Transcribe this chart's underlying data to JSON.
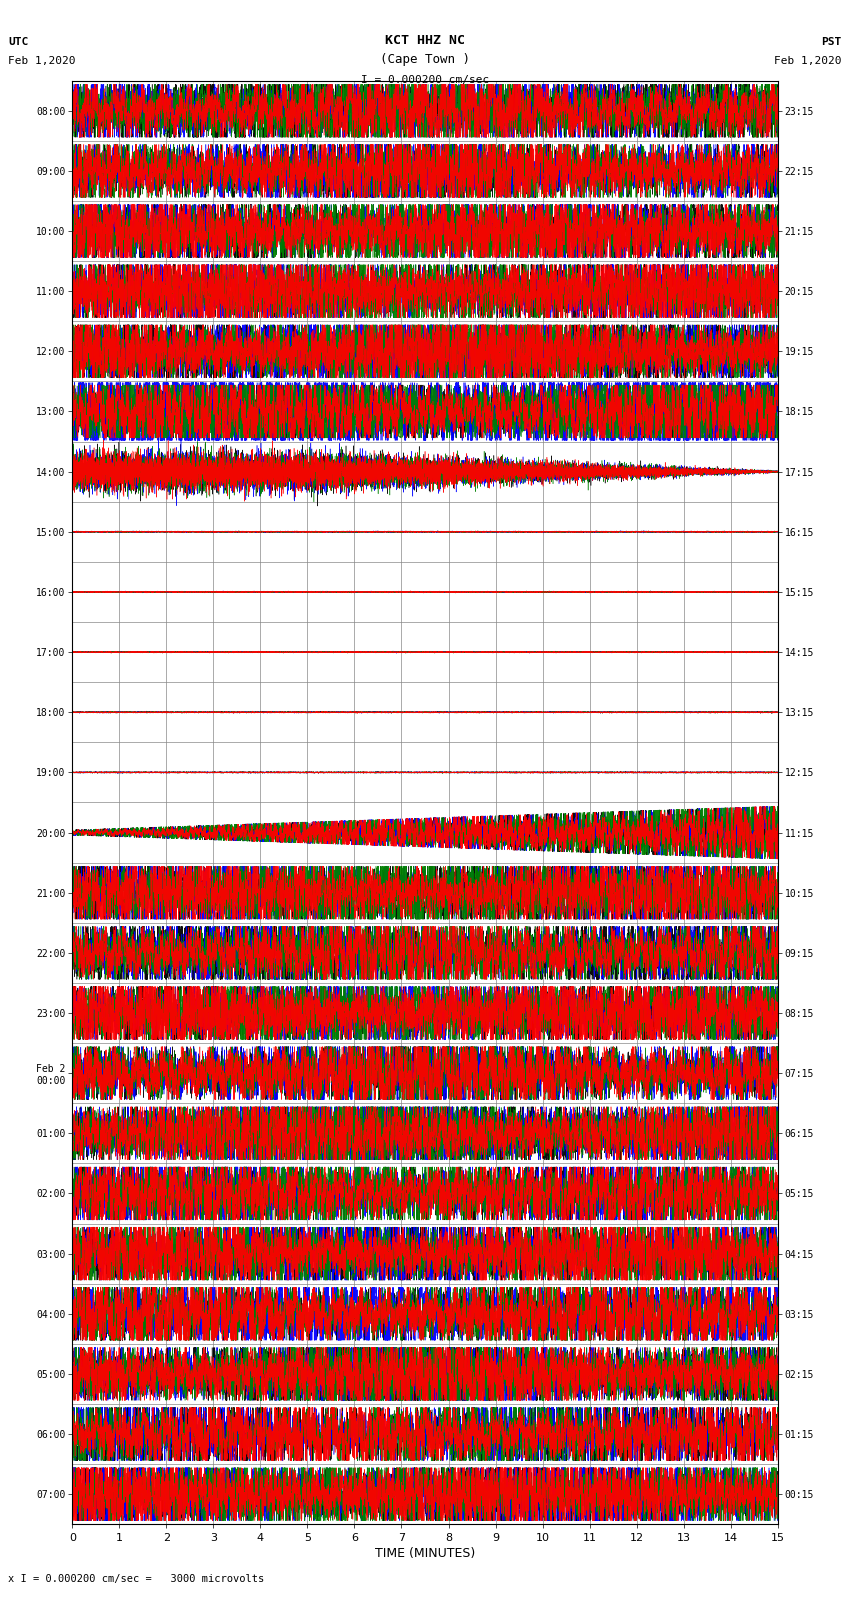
{
  "title_line1": "KCT HHZ NC",
  "title_line2": "(Cape Town )",
  "scale_label": "I = 0.000200 cm/sec",
  "left_label_top": "UTC",
  "left_label_date": "Feb 1,2020",
  "right_label_top": "PST",
  "right_label_date": "Feb 1,2020",
  "bottom_label": "TIME (MINUTES)",
  "footer_label": "x I = 0.000200 cm/sec =   3000 microvolts",
  "xlim": [
    0,
    15
  ],
  "xticks": [
    0,
    1,
    2,
    3,
    4,
    5,
    6,
    7,
    8,
    9,
    10,
    11,
    12,
    13,
    14,
    15
  ],
  "num_rows": 24,
  "utc_labels": [
    "08:00",
    "09:00",
    "10:00",
    "11:00",
    "12:00",
    "13:00",
    "14:00",
    "15:00",
    "16:00",
    "17:00",
    "18:00",
    "19:00",
    "20:00",
    "21:00",
    "22:00",
    "23:00",
    "Feb 2\n00:00",
    "01:00",
    "02:00",
    "03:00",
    "04:00",
    "05:00",
    "06:00",
    "07:00"
  ],
  "pst_labels": [
    "00:15",
    "01:15",
    "02:15",
    "03:15",
    "04:15",
    "05:15",
    "06:15",
    "07:15",
    "08:15",
    "09:15",
    "10:15",
    "11:15",
    "12:15",
    "13:15",
    "14:15",
    "15:15",
    "16:15",
    "17:15",
    "18:15",
    "19:15",
    "20:15",
    "21:15",
    "22:15",
    "23:15"
  ],
  "active_rows": [
    0,
    1,
    2,
    3,
    4,
    5,
    12,
    13,
    14,
    15,
    16,
    17,
    18,
    19,
    20,
    21,
    22,
    23
  ],
  "semi_active_rows": [
    6
  ],
  "quiet_rows": [
    7,
    8,
    9,
    10,
    11
  ],
  "transition_row": 12,
  "colors": [
    "#000000",
    "#0000ff",
    "#008000",
    "#ff0000"
  ],
  "bg_color": "#ffffff",
  "grid_color": "#888888",
  "fig_width": 8.5,
  "fig_height": 16.13,
  "dpi": 100
}
